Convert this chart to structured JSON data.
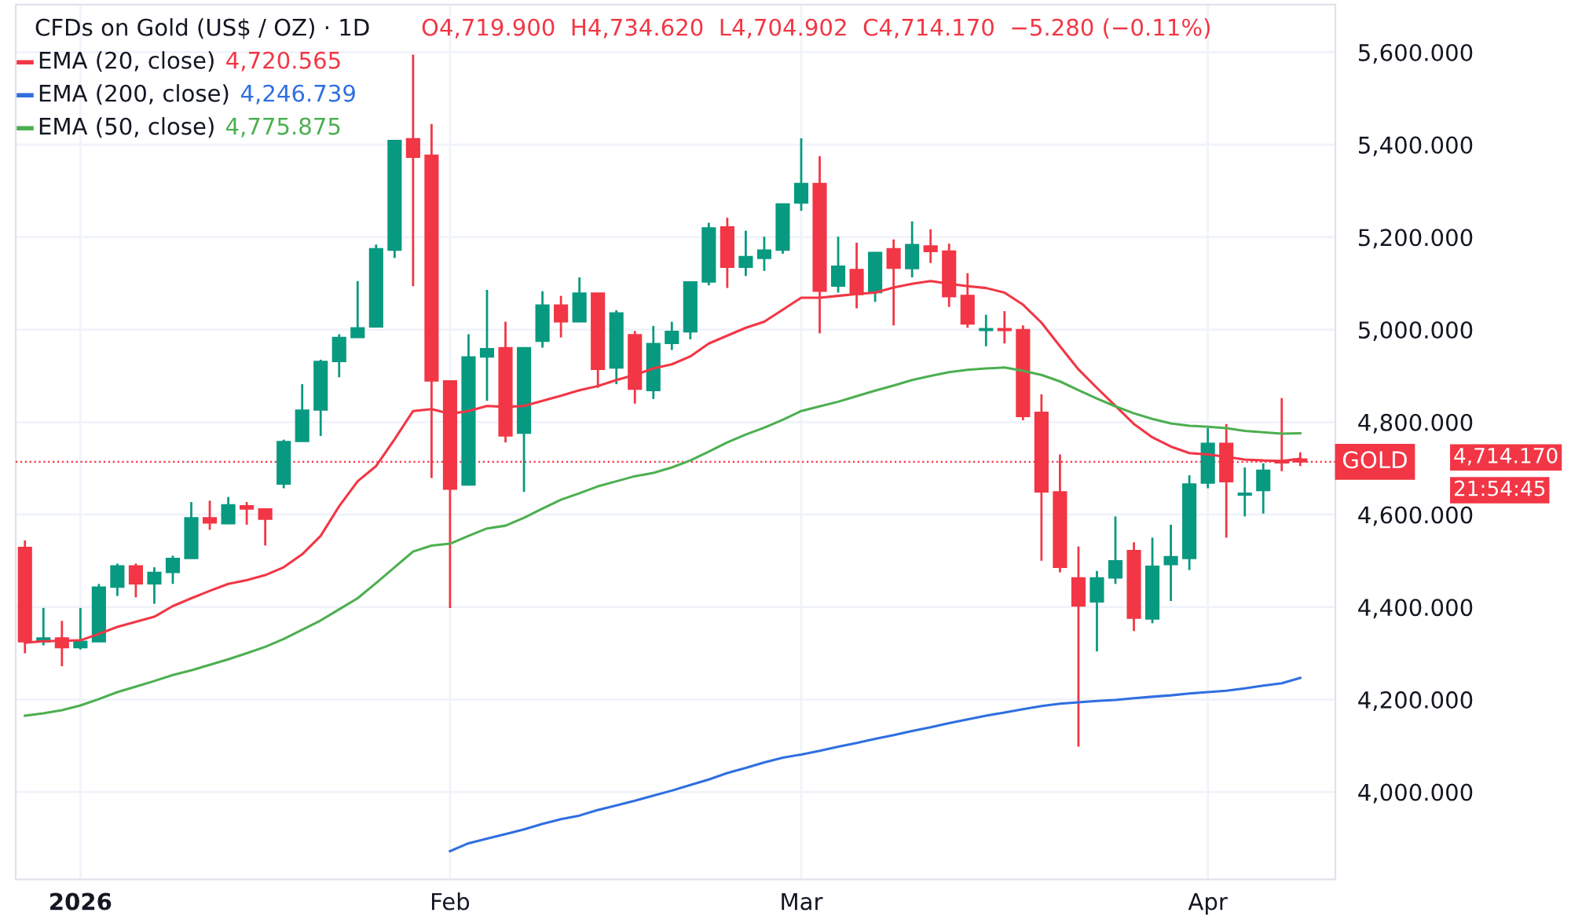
{
  "chart_data": {
    "type": "candlestick",
    "title": "CFDs on Gold (US$ / OZ) · 1D",
    "categories": [
      null,
      null,
      null,
      "2026",
      null,
      null,
      null,
      null,
      null,
      null,
      null,
      null,
      null,
      null,
      null,
      null,
      null,
      null,
      null,
      null,
      null,
      null,
      null,
      "Feb",
      null,
      null,
      null,
      null,
      null,
      null,
      null,
      null,
      null,
      null,
      null,
      null,
      null,
      null,
      null,
      null,
      null,
      null,
      "Mar",
      null,
      null,
      null,
      null,
      null,
      null,
      null,
      null,
      null,
      null,
      null,
      null,
      null,
      null,
      null,
      null,
      null,
      null,
      null,
      null,
      null,
      "Apr",
      null,
      null,
      null,
      null,
      null
    ],
    "ohlc": [
      [
        4529,
        4544,
        4300,
        4325
      ],
      [
        4325,
        4398,
        4317,
        4333
      ],
      [
        4333,
        4370,
        4272,
        4312
      ],
      [
        4312,
        4398,
        4308,
        4326
      ],
      [
        4325,
        4450,
        4325,
        4443
      ],
      [
        4443,
        4494,
        4424,
        4489
      ],
      [
        4489,
        4494,
        4421,
        4450
      ],
      [
        4450,
        4486,
        4407,
        4475
      ],
      [
        4475,
        4511,
        4450,
        4505
      ],
      [
        4505,
        4627,
        4505,
        4593
      ],
      [
        4593,
        4630,
        4567,
        4582
      ],
      [
        4580,
        4638,
        4580,
        4621
      ],
      [
        4619,
        4627,
        4578,
        4612
      ],
      [
        4612,
        4612,
        4533,
        4590
      ],
      [
        4666,
        4762,
        4657,
        4758
      ],
      [
        4758,
        4882,
        4758,
        4826
      ],
      [
        4826,
        4935,
        4770,
        4931
      ],
      [
        4931,
        4990,
        4897,
        4983
      ],
      [
        4983,
        5105,
        4983,
        5004
      ],
      [
        5006,
        5184,
        5006,
        5175
      ],
      [
        5172,
        5409,
        5155,
        5409
      ],
      [
        5413,
        5595,
        5094,
        5373
      ],
      [
        5377,
        5445,
        4679,
        4889
      ],
      [
        4889,
        4889,
        4398,
        4655
      ],
      [
        4664,
        4990,
        4664,
        4941
      ],
      [
        4941,
        5086,
        4846,
        4959
      ],
      [
        4961,
        5017,
        4756,
        4770
      ],
      [
        4776,
        4961,
        4649,
        4961
      ],
      [
        4975,
        5083,
        4961,
        5053
      ],
      [
        5053,
        5073,
        4983,
        5017
      ],
      [
        5017,
        5113,
        5017,
        5079
      ],
      [
        5079,
        5079,
        4874,
        4914
      ],
      [
        4917,
        5042,
        4882,
        5036
      ],
      [
        4989,
        4997,
        4840,
        4871
      ],
      [
        4868,
        5008,
        4850,
        4970
      ],
      [
        4970,
        5017,
        4956,
        4996
      ],
      [
        4995,
        5103,
        4979,
        5103
      ],
      [
        5103,
        5231,
        5096,
        5220
      ],
      [
        5222,
        5242,
        5090,
        5135
      ],
      [
        5135,
        5214,
        5116,
        5158
      ],
      [
        5154,
        5201,
        5127,
        5172
      ],
      [
        5172,
        5272,
        5164,
        5272
      ],
      [
        5274,
        5414,
        5257,
        5316
      ],
      [
        5316,
        5375,
        4992,
        5083
      ],
      [
        5094,
        5201,
        5080,
        5137
      ],
      [
        5130,
        5188,
        5046,
        5076
      ],
      [
        5080,
        5167,
        5060,
        5167
      ],
      [
        5175,
        5195,
        5009,
        5133
      ],
      [
        5132,
        5234,
        5113,
        5184
      ],
      [
        5181,
        5217,
        5144,
        5169
      ],
      [
        5170,
        5186,
        5049,
        5071
      ],
      [
        5074,
        5122,
        5004,
        5012
      ],
      [
        4998,
        5032,
        4964,
        5002
      ],
      [
        5002,
        5040,
        4970,
        4998
      ],
      [
        5000,
        5009,
        4804,
        4812
      ],
      [
        4821,
        4860,
        4500,
        4649
      ],
      [
        4649,
        4730,
        4475,
        4486
      ],
      [
        4463,
        4531,
        4098,
        4402
      ],
      [
        4411,
        4478,
        4304,
        4463
      ],
      [
        4463,
        4596,
        4450,
        4500
      ],
      [
        4522,
        4540,
        4348,
        4376
      ],
      [
        4374,
        4550,
        4365,
        4488
      ],
      [
        4492,
        4578,
        4413,
        4509
      ],
      [
        4505,
        4685,
        4480,
        4666
      ],
      [
        4668,
        4787,
        4657,
        4754
      ],
      [
        4754,
        4796,
        4550,
        4671
      ],
      [
        4642,
        4702,
        4596,
        4646
      ],
      [
        4652,
        4711,
        4602,
        4696
      ],
      [
        4716,
        4852,
        4694,
        4712
      ],
      [
        4719.9,
        4734.62,
        4704.902,
        4714.17
      ]
    ],
    "colors": [
      "#f23645",
      "#089981",
      "#f23645",
      "#089981",
      "#089981",
      "#089981",
      "#f23645",
      "#089981",
      "#089981",
      "#089981",
      "#f23645",
      "#089981",
      "#f23645",
      "#f23645",
      "#089981",
      "#089981",
      "#089981",
      "#089981",
      "#089981",
      "#089981",
      "#089981",
      "#f23645",
      "#f23645",
      "#f23645",
      "#089981",
      "#089981",
      "#f23645",
      "#089981",
      "#089981",
      "#f23645",
      "#089981",
      "#f23645",
      "#089981",
      "#f23645",
      "#089981",
      "#089981",
      "#089981",
      "#089981",
      "#f23645",
      "#089981",
      "#089981",
      "#089981",
      "#089981",
      "#f23645",
      "#089981",
      "#f23645",
      "#089981",
      "#f23645",
      "#089981",
      "#f23645",
      "#f23645",
      "#f23645",
      "#089981",
      "#f23645",
      "#f23645",
      "#f23645",
      "#f23645",
      "#f23645",
      "#089981",
      "#089981",
      "#f23645",
      "#089981",
      "#089981",
      "#089981",
      "#089981",
      "#f23645",
      "#089981",
      "#089981",
      "#f23645",
      "#f23645"
    ],
    "series": [
      {
        "name": "EMA (20, close)",
        "type": "line",
        "color": "#f23645",
        "values": [
          4323,
          4326,
          4327,
          4328,
          4342,
          4357,
          4368,
          4379,
          4402,
          4419,
          4435,
          4450,
          4458,
          4469,
          4486,
          4514,
          4554,
          4618,
          4672,
          4705,
          4763,
          4824,
          4828,
          4818,
          4824,
          4835,
          4833,
          4835,
          4846,
          4857,
          4869,
          4878,
          4891,
          4902,
          4916,
          4925,
          4942,
          4970,
          4987,
          5004,
          5017,
          5043,
          5069,
          5069,
          5073,
          5077,
          5080,
          5091,
          5099,
          5105,
          5099,
          5094,
          5090,
          5080,
          5054,
          5015,
          4964,
          4914,
          4874,
          4835,
          4796,
          4767,
          4747,
          4733,
          4730,
          4725,
          4719,
          4717,
          4716,
          4720.565
        ]
      },
      {
        "name": "EMA (200, close)",
        "type": "line",
        "color": "#2f6fe0",
        "values": [
          null,
          null,
          null,
          null,
          null,
          null,
          null,
          null,
          null,
          null,
          null,
          null,
          null,
          null,
          null,
          null,
          null,
          null,
          null,
          null,
          null,
          null,
          null,
          3872,
          3889,
          3899,
          3909,
          3919,
          3931,
          3941,
          3949,
          3961,
          3971,
          3981,
          3992,
          4003,
          4015,
          4027,
          4041,
          4052,
          4064,
          4074,
          4081,
          4089,
          4098,
          4106,
          4115,
          4123,
          4132,
          4140,
          4149,
          4157,
          4165,
          4172,
          4179,
          4186,
          4191,
          4194,
          4197,
          4199,
          4203,
          4206,
          4209,
          4213,
          4216,
          4219,
          4224,
          4230,
          4235,
          4246.739
        ]
      },
      {
        "name": "EMA (50, close)",
        "type": "line",
        "color": "#4caf50",
        "values": [
          4165,
          4170,
          4177,
          4187,
          4201,
          4216,
          4228,
          4240,
          4253,
          4263,
          4275,
          4287,
          4300,
          4314,
          4331,
          4351,
          4371,
          4395,
          4419,
          4452,
          4486,
          4520,
          4533,
          4537,
          4554,
          4570,
          4576,
          4593,
          4613,
          4632,
          4646,
          4661,
          4672,
          4683,
          4690,
          4702,
          4717,
          4736,
          4756,
          4773,
          4788,
          4805,
          4824,
          4834,
          4844,
          4856,
          4868,
          4879,
          4891,
          4900,
          4908,
          4913,
          4916,
          4918,
          4911,
          4902,
          4888,
          4869,
          4851,
          4834,
          4819,
          4807,
          4797,
          4792,
          4790,
          4787,
          4781,
          4778,
          4775,
          4775.875
        ]
      }
    ],
    "ylim": [
      3811,
      5703
    ],
    "yticks": [
      {
        "value": 4000,
        "label": "4,000.000"
      },
      {
        "value": 4200,
        "label": "4,200.000"
      },
      {
        "value": 4400,
        "label": "4,400.000"
      },
      {
        "value": 4600,
        "label": "4,600.000"
      },
      {
        "value": 4800,
        "label": "4,800.000"
      },
      {
        "value": 5000,
        "label": "5,000.000"
      },
      {
        "value": 5200,
        "label": "5,200.000"
      },
      {
        "value": 5400,
        "label": "5,400.000"
      },
      {
        "value": 5600,
        "label": "5,600.000"
      }
    ],
    "grid": true,
    "legend": "top left",
    "ref_lines": [
      {
        "axis": "y",
        "value": 4714.17,
        "label": "GOLD",
        "color": "#f23645",
        "line_style": "dotted"
      }
    ],
    "annotations": [
      "O4,719.900  H4,734.620  L4,704.902  C4,714.170  −5.280 (−0.11%)",
      "4,720.565",
      "4,246.739",
      "4,775.875",
      "4,714.170",
      "21:54:45"
    ]
  }
}
